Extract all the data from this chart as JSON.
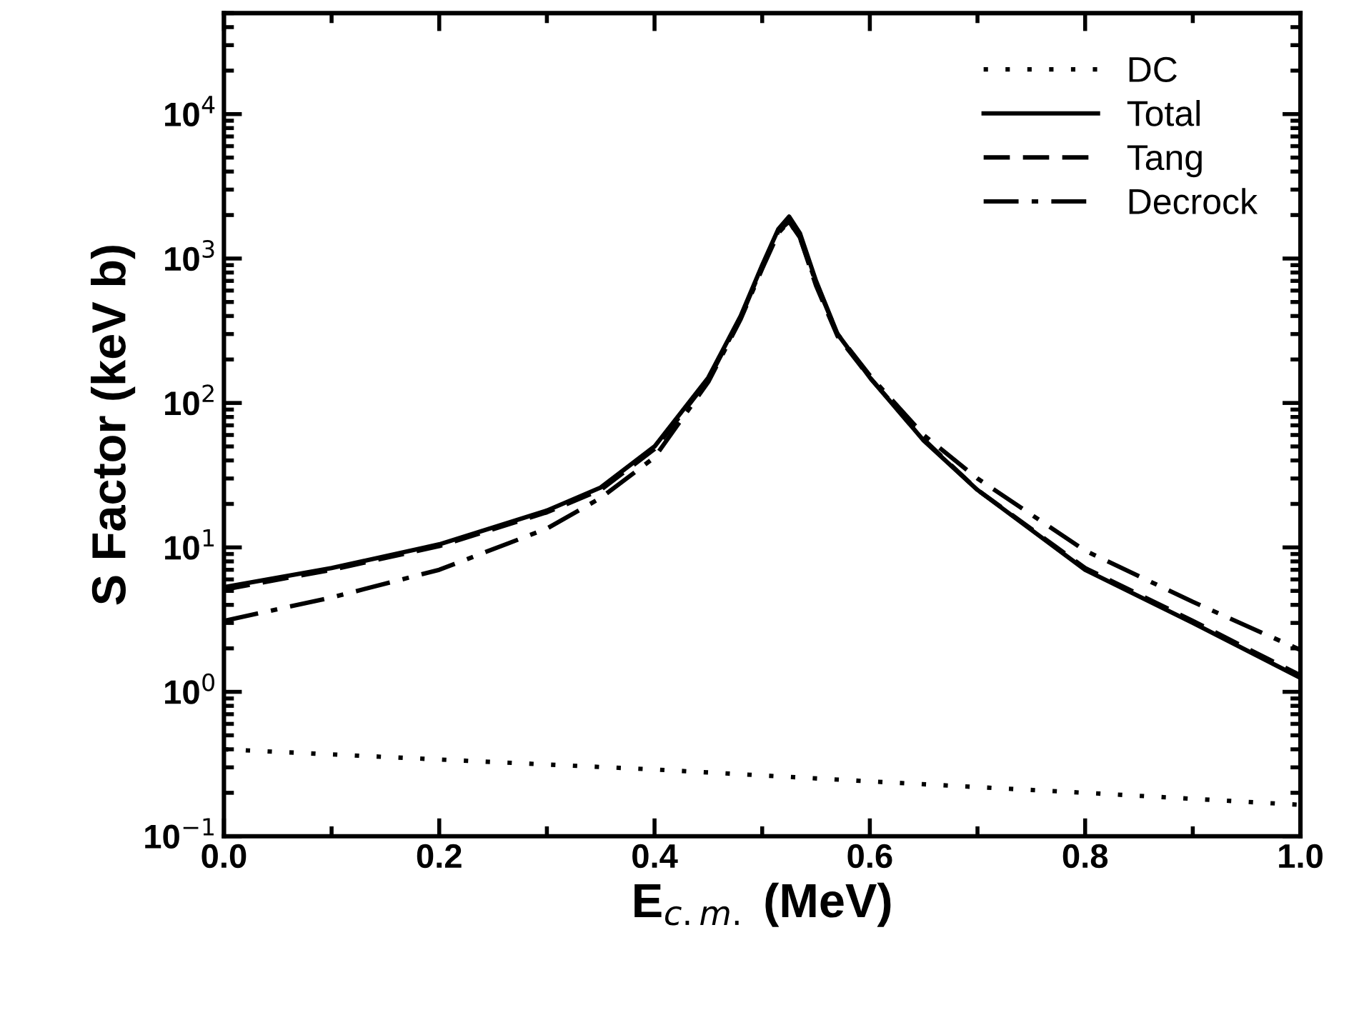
{
  "chart_data": {
    "type": "line",
    "xlabel": "E$_{c.m.}$ (MeV)",
    "ylabel": "S Factor (keV b)",
    "log": "y",
    "grid": false,
    "legend": "top right",
    "xlim": [
      0.0,
      1.0
    ],
    "xticks": [
      {
        "value": 0.0,
        "label": "0.0"
      },
      0.2,
      0.4,
      0.6,
      0.8,
      {
        "value": 1.0,
        "label": "1.0"
      }
    ],
    "ylim": [
      0.1,
      50000
    ],
    "yticks": [
      {
        "value": 0.1,
        "label": "10$^{−1}$"
      },
      {
        "value": 1,
        "label": "10$^{0}$"
      },
      {
        "value": 10,
        "label": "10$^{1}$"
      },
      {
        "value": 100,
        "label": "10$^{2}$"
      },
      {
        "value": 1000,
        "label": "10$^{3}$"
      },
      {
        "value": 10000,
        "label": "10$^{4}$"
      }
    ],
    "series": [
      {
        "name": "DC",
        "color": "#000000",
        "line_style": "dotted",
        "x": [
          0.0,
          0.2,
          0.4,
          0.6,
          0.8,
          1.0
        ],
        "values": [
          0.4,
          0.34,
          0.29,
          0.24,
          0.2,
          0.165
        ]
      },
      {
        "name": "Total",
        "color": "#000000",
        "line_style": "solid",
        "x": [
          0.0,
          0.1,
          0.2,
          0.3,
          0.35,
          0.4,
          0.45,
          0.48,
          0.5,
          0.515,
          0.525,
          0.535,
          0.55,
          0.57,
          0.6,
          0.65,
          0.7,
          0.8,
          0.9,
          1.0
        ],
        "values": [
          5.3,
          7.2,
          10.5,
          18,
          26,
          50,
          150,
          400,
          900,
          1600,
          1950,
          1500,
          700,
          300,
          150,
          55,
          25,
          7,
          3,
          1.25
        ]
      },
      {
        "name": "Tang",
        "color": "#000000",
        "line_style": "dashed",
        "x": [
          0.0,
          0.1,
          0.2,
          0.3,
          0.35,
          0.4,
          0.45,
          0.48,
          0.5,
          0.515,
          0.525,
          0.535,
          0.55,
          0.57,
          0.6,
          0.65,
          0.7,
          0.8,
          0.9,
          1.0
        ],
        "values": [
          5.1,
          7.0,
          10.2,
          17.5,
          25,
          48,
          145,
          390,
          880,
          1550,
          1800,
          1400,
          650,
          290,
          150,
          56,
          25,
          7.2,
          3.1,
          1.3
        ]
      },
      {
        "name": "Decrock",
        "color": "#000000",
        "line_style": "dashdot",
        "x": [
          0.0,
          0.1,
          0.2,
          0.3,
          0.35,
          0.4,
          0.45,
          0.48,
          0.5,
          0.515,
          0.525,
          0.535,
          0.55,
          0.57,
          0.6,
          0.65,
          0.7,
          0.8,
          0.9,
          1.0
        ],
        "values": [
          3.1,
          4.5,
          7.0,
          13.5,
          22,
          42,
          140,
          380,
          850,
          1500,
          1800,
          1400,
          680,
          300,
          155,
          60,
          30,
          9.5,
          4.2,
          1.95
        ]
      }
    ]
  }
}
